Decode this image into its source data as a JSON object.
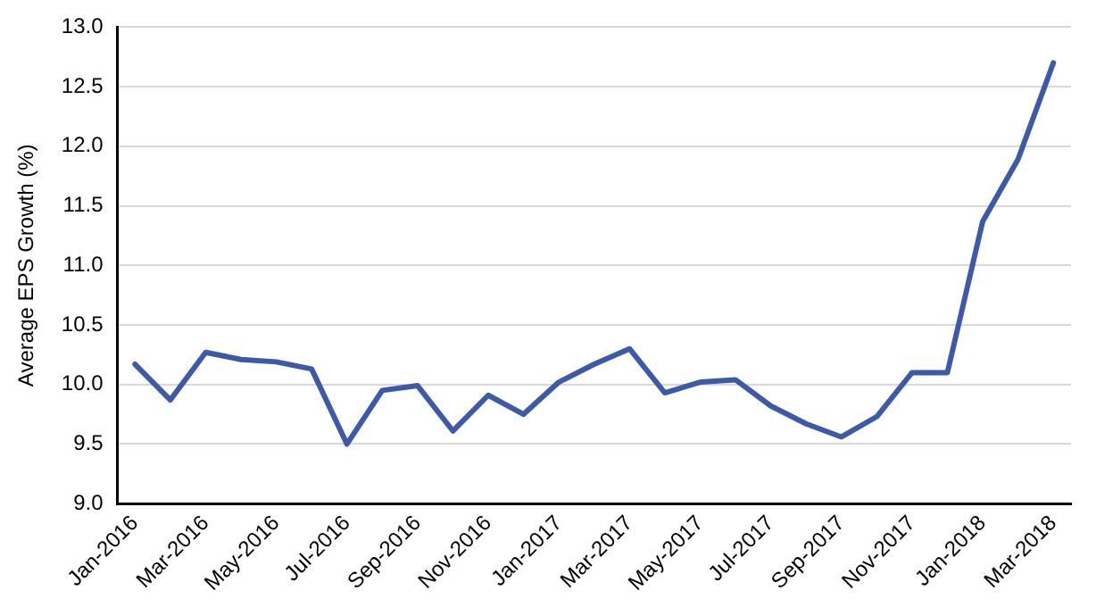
{
  "chart_data": {
    "type": "line",
    "ylabel": "Average EPS Growth (%)",
    "categories": [
      "Jan-2016",
      null,
      "Mar-2016",
      null,
      "May-2016",
      null,
      "Jul-2016",
      null,
      "Sep-2016",
      null,
      "Nov-2016",
      null,
      "Jan-2017",
      null,
      "Mar-2017",
      null,
      "May-2017",
      null,
      "Jul-2017",
      null,
      "Sep-2017",
      null,
      "Nov-2017",
      null,
      "Jan-2018",
      null,
      "Mar-2018"
    ],
    "series": [
      {
        "color": "#3d5aa8",
        "values": [
          10.17,
          9.87,
          10.27,
          10.21,
          10.19,
          10.13,
          9.5,
          9.95,
          9.99,
          9.61,
          9.91,
          9.75,
          10.02,
          10.17,
          10.3,
          9.93,
          10.02,
          10.04,
          9.82,
          9.67,
          9.56,
          9.73,
          10.1,
          10.1,
          11.37,
          11.89,
          12.7
        ]
      }
    ],
    "ylim": [
      9.0,
      13.0
    ],
    "yticks": [
      {
        "value": 9.0,
        "label": "9.0"
      },
      {
        "value": 9.5,
        "label": "9.5"
      },
      {
        "value": 10.0,
        "label": "10.0"
      },
      {
        "value": 10.5,
        "label": "10.5"
      },
      {
        "value": 11.0,
        "label": "11.0"
      },
      {
        "value": 11.5,
        "label": "11.5"
      },
      {
        "value": 12.0,
        "label": "12.0"
      },
      {
        "value": 12.5,
        "label": "12.5"
      },
      {
        "value": 13.0,
        "label": "13.0"
      }
    ],
    "grid": "y",
    "legend": false,
    "marker": "none",
    "line_style": "solid"
  }
}
